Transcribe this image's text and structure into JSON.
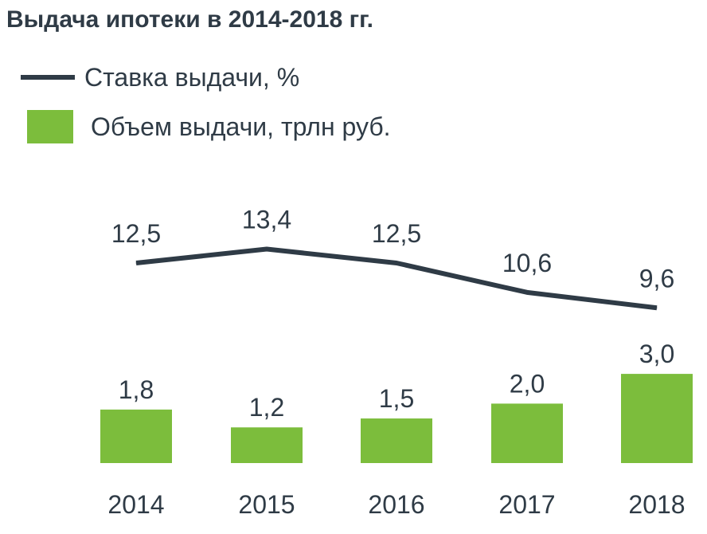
{
  "title": "Выдача ипотеки в 2014-2018 гг.",
  "legend": {
    "line_label": "Ставка выдачи, %",
    "bar_label": "Объем выдачи, трлн руб."
  },
  "colors": {
    "line": "#2f3b46",
    "bar": "#7cbd3c",
    "text": "#2f3b46"
  },
  "chart_data": {
    "type": "bar",
    "title": "Выдача ипотеки в 2014-2018 гг.",
    "categories": [
      "2014",
      "2015",
      "2016",
      "2017",
      "2018"
    ],
    "series": [
      {
        "name": "Объем выдачи, трлн руб.",
        "type": "bar",
        "values": [
          1.8,
          1.2,
          1.5,
          2.0,
          3.0
        ],
        "labels": [
          "1,8",
          "1,2",
          "1,5",
          "2,0",
          "3,0"
        ]
      },
      {
        "name": "Ставка выдачи, %",
        "type": "line",
        "values": [
          12.5,
          13.4,
          12.5,
          10.6,
          9.6
        ],
        "labels": [
          "12,5",
          "13,4",
          "12,5",
          "10,6",
          "9,6"
        ]
      }
    ],
    "grid": false,
    "legend_position": "top-left"
  }
}
